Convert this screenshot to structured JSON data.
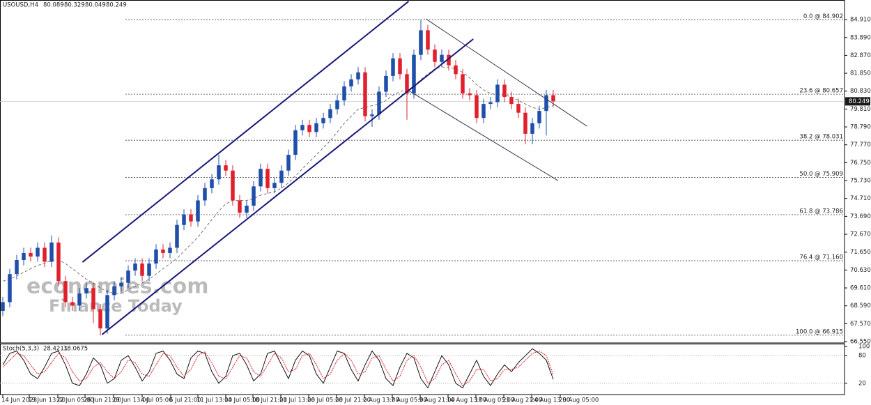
{
  "chart_data": [
    {
      "type": "candlestick",
      "title": "USOUSD,H4",
      "ohlc_header": [
        80.089,
        80.329,
        80.049,
        80.249
      ],
      "open": [
        68.3,
        68.8,
        70.4,
        71.2,
        71.6,
        71.4,
        71.9,
        71.1,
        72.2,
        70.0,
        68.8,
        68.6,
        69.3,
        69.6,
        68.4,
        67.3,
        69.2,
        69.7,
        69.9,
        70.6,
        71.0,
        70.3,
        71.0,
        71.8,
        71.6,
        71.9,
        73.2,
        73.8,
        73.4,
        74.6,
        75.3,
        75.8,
        76.6,
        76.3,
        74.6,
        73.9,
        74.3,
        75.4,
        76.4,
        75.3,
        75.6,
        76.3,
        77.2,
        78.6,
        78.9,
        78.5,
        79.0,
        79.3,
        79.8,
        80.3,
        81.1,
        81.5,
        81.9,
        79.4,
        79.5,
        80.8,
        81.7,
        82.7,
        81.8,
        80.7,
        82.9,
        84.3,
        83.2,
        82.5,
        82.9,
        82.3,
        81.8,
        80.7,
        80.6,
        79.3,
        80.1,
        80.2,
        81.2,
        80.5,
        80.1,
        79.6,
        78.4,
        79.0,
        79.7,
        80.6
      ],
      "high": [
        69.1,
        70.7,
        71.5,
        71.9,
        71.9,
        72.2,
        72.2,
        72.6,
        72.5,
        70.3,
        69.1,
        69.6,
        69.9,
        69.9,
        68.7,
        69.5,
        70.0,
        70.2,
        70.9,
        71.3,
        71.3,
        71.3,
        72.1,
        72.1,
        72.2,
        73.5,
        74.1,
        74.1,
        74.9,
        75.6,
        76.1,
        77.2,
        76.9,
        76.6,
        74.9,
        74.6,
        75.7,
        76.7,
        76.7,
        75.9,
        76.6,
        77.5,
        78.9,
        79.2,
        79.2,
        79.3,
        79.6,
        80.1,
        80.6,
        81.4,
        81.8,
        82.2,
        82.2,
        79.8,
        81.1,
        82.0,
        83.0,
        83.0,
        82.1,
        83.2,
        84.9,
        84.6,
        83.5,
        83.2,
        83.2,
        82.6,
        82.1,
        81.0,
        80.9,
        80.4,
        80.5,
        81.5,
        81.5,
        80.8,
        80.4,
        79.9,
        79.3,
        80.0,
        80.9,
        80.9
      ],
      "low": [
        68.0,
        68.5,
        70.1,
        70.9,
        71.1,
        71.1,
        70.8,
        70.8,
        69.7,
        68.5,
        68.3,
        68.3,
        69.0,
        67.6,
        66.9,
        67.0,
        68.9,
        69.4,
        69.6,
        70.3,
        70.0,
        70.0,
        70.7,
        71.3,
        71.3,
        71.6,
        72.9,
        73.1,
        73.1,
        74.3,
        75.0,
        75.5,
        76.0,
        74.3,
        73.6,
        73.6,
        74.0,
        75.1,
        75.0,
        75.0,
        75.3,
        76.0,
        76.9,
        78.3,
        78.2,
        78.2,
        78.7,
        79.0,
        79.5,
        80.0,
        80.8,
        81.2,
        79.1,
        78.8,
        79.2,
        80.5,
        81.4,
        81.5,
        79.2,
        80.4,
        82.6,
        82.9,
        82.2,
        82.2,
        82.0,
        81.5,
        80.4,
        80.3,
        79.0,
        79.0,
        79.8,
        79.9,
        80.2,
        79.8,
        79.3,
        77.8,
        77.8,
        78.7,
        78.3,
        79.95
      ],
      "close": [
        68.8,
        70.4,
        71.2,
        71.6,
        71.4,
        71.9,
        71.1,
        72.2,
        70.0,
        68.8,
        68.6,
        69.3,
        69.6,
        68.4,
        67.3,
        69.2,
        69.7,
        69.9,
        70.6,
        71.0,
        70.3,
        71.0,
        71.8,
        71.6,
        71.9,
        73.2,
        73.8,
        73.4,
        74.6,
        75.3,
        75.8,
        76.6,
        76.3,
        74.6,
        73.9,
        74.3,
        75.4,
        76.4,
        75.3,
        75.6,
        76.3,
        77.2,
        78.6,
        78.9,
        78.5,
        79.0,
        79.3,
        79.8,
        80.3,
        81.1,
        81.5,
        81.9,
        79.4,
        79.5,
        80.8,
        81.7,
        82.7,
        81.8,
        80.7,
        82.9,
        84.3,
        83.2,
        82.5,
        82.9,
        82.3,
        81.8,
        80.7,
        80.6,
        79.3,
        80.1,
        80.2,
        81.2,
        80.5,
        80.1,
        79.6,
        78.4,
        79.0,
        79.7,
        80.6,
        80.25
      ],
      "up_color": "#1f4fa8",
      "down_color": "#e0202c",
      "ma": {
        "color": "#555555",
        "values": [
          70.0,
          70.1,
          70.3,
          70.5,
          70.7,
          70.9,
          71.0,
          71.2,
          71.2,
          71.0,
          70.7,
          70.4,
          70.1,
          69.9,
          69.6,
          69.4,
          69.3,
          69.3,
          69.5,
          69.7,
          69.9,
          70.1,
          70.4,
          70.7,
          71.0,
          71.3,
          71.7,
          72.1,
          72.5,
          73.0,
          73.5,
          74.0,
          74.4,
          74.6,
          74.6,
          74.6,
          74.7,
          74.9,
          75.0,
          75.1,
          75.3,
          75.6,
          76.0,
          76.4,
          76.8,
          77.2,
          77.6,
          78.0,
          78.5,
          79.0,
          79.4,
          79.8,
          79.9,
          80.0,
          80.1,
          80.3,
          80.6,
          80.8,
          80.9,
          81.1,
          81.5,
          81.8,
          82.1,
          82.2,
          82.2,
          82.1,
          81.9,
          81.6,
          81.2,
          80.9,
          80.7,
          80.6,
          80.6,
          80.5,
          80.3,
          80.1,
          79.9,
          79.8,
          79.9,
          80.0
        ]
      },
      "xlim": [
        -0.4,
        120.8
      ],
      "xticks": [
        {
          "value": 0,
          "label": "14 Jun 2023"
        },
        {
          "value": 3.8,
          "label": "19 Jun 13:00"
        },
        {
          "value": 7.9,
          "label": "22 Jun 05:00"
        },
        {
          "value": 11.8,
          "label": "26 Jun 21:00"
        },
        {
          "value": 15.9,
          "label": "29 Jun 13:00"
        },
        {
          "value": 20,
          "label": "4 Jul 05:00"
        },
        {
          "value": 24.1,
          "label": "6 Jul 21:00"
        },
        {
          "value": 28,
          "label": "11 Jul 13:00"
        },
        {
          "value": 32,
          "label": "14 Jul 05:00"
        },
        {
          "value": 35.9,
          "label": "18 Jul 21:00"
        },
        {
          "value": 39.9,
          "label": "21 Jul 13:00"
        },
        {
          "value": 43.9,
          "label": "26 Jul 05:00"
        },
        {
          "value": 47.9,
          "label": "28 Jul 21:00"
        },
        {
          "value": 51.9,
          "label": "2 Aug 13:00"
        },
        {
          "value": 55.9,
          "label": "7 Aug 05:00"
        },
        {
          "value": 59.9,
          "label": "9 Aug 21:00"
        },
        {
          "value": 63.9,
          "label": "14 Aug 13:00"
        },
        {
          "value": 67.9,
          "label": "17 Aug 05:00"
        },
        {
          "value": 71.9,
          "label": "21 Aug 21:00"
        },
        {
          "value": 75.9,
          "label": "24 Aug 13:00"
        },
        {
          "value": 80,
          "label": "29 Aug 05:00"
        }
      ],
      "ylim": [
        66.47,
        85.47
      ],
      "yticks": [
        {
          "value": 84.91,
          "label": "84.910"
        },
        {
          "value": 83.89,
          "label": "83.890"
        },
        {
          "value": 82.87,
          "label": "82.870"
        },
        {
          "value": 81.85,
          "label": "81.850"
        },
        {
          "value": 80.83,
          "label": "80.830"
        },
        {
          "value": 79.81,
          "label": "79.810"
        },
        {
          "value": 78.79,
          "label": "78.790"
        },
        {
          "value": 77.77,
          "label": "77.770"
        },
        {
          "value": 76.75,
          "label": "76.750"
        },
        {
          "value": 75.73,
          "label": "75.730"
        },
        {
          "value": 74.71,
          "label": "74.710"
        },
        {
          "value": 73.69,
          "label": "73.690"
        },
        {
          "value": 72.67,
          "label": "72.670"
        },
        {
          "value": 71.65,
          "label": "71.650"
        },
        {
          "value": 70.63,
          "label": "70.630"
        },
        {
          "value": 69.61,
          "label": "69.610"
        },
        {
          "value": 68.59,
          "label": "68.590"
        },
        {
          "value": 67.57,
          "label": "67.570"
        },
        {
          "value": 66.55,
          "label": "66.550"
        }
      ],
      "fibonacci": [
        {
          "value": 84.902,
          "label": "0.0 @ 84.902"
        },
        {
          "value": 80.657,
          "label": "23.6 @ 80.657"
        },
        {
          "value": 78.031,
          "label": "38.2 @ 78.031"
        },
        {
          "value": 75.909,
          "label": "50.0 @ 75.909"
        },
        {
          "value": 73.786,
          "label": "61.8 @ 73.786"
        },
        {
          "value": 71.16,
          "label": "76.4 @ 71.160"
        },
        {
          "value": 66.915,
          "label": "100.0 @ 66.915"
        }
      ],
      "trendlines": [
        {
          "color": "#17177a",
          "x": [
            11.44,
            58.24
          ],
          "y": [
            71.08,
            85.95
          ]
        },
        {
          "color": "#17177a",
          "x": [
            14.24,
            67.52
          ],
          "y": [
            66.95,
            83.8
          ]
        },
        {
          "color": "#333355",
          "x": [
            60.72,
            83.84
          ],
          "y": [
            84.95,
            78.83
          ]
        },
        {
          "color": "#333355",
          "x": [
            58.24,
            79.68
          ],
          "y": [
            80.86,
            75.73
          ]
        }
      ],
      "current": 80.249,
      "watermark": [
        "economies.com",
        "Finance Today"
      ]
    },
    {
      "type": "line",
      "title": "Stoch(5,3,3)",
      "series": [
        {
          "color": "#111111",
          "values": [
            60,
            85,
            90,
            70,
            40,
            30,
            55,
            85,
            90,
            60,
            20,
            15,
            40,
            75,
            60,
            20,
            30,
            70,
            80,
            55,
            25,
            45,
            85,
            90,
            70,
            40,
            30,
            75,
            90,
            85,
            45,
            20,
            35,
            80,
            85,
            60,
            25,
            40,
            85,
            90,
            60,
            30,
            70,
            90,
            80,
            40,
            20,
            55,
            90,
            85,
            50,
            25,
            60,
            90,
            70,
            30,
            15,
            55,
            85,
            75,
            30,
            10,
            45,
            80,
            60,
            20,
            10,
            40,
            70,
            35,
            15,
            40,
            60,
            45,
            65,
            80,
            95,
            85,
            70,
            28.4211
          ]
        },
        {
          "color": "#e0202c",
          "values": [
            55,
            70,
            85,
            80,
            60,
            40,
            45,
            65,
            85,
            75,
            45,
            25,
            30,
            55,
            65,
            45,
            30,
            45,
            70,
            65,
            40,
            35,
            60,
            85,
            80,
            55,
            35,
            50,
            80,
            88,
            65,
            35,
            30,
            55,
            80,
            75,
            45,
            35,
            60,
            85,
            75,
            45,
            50,
            80,
            85,
            60,
            30,
            40,
            70,
            85,
            70,
            40,
            45,
            75,
            80,
            50,
            25,
            35,
            70,
            80,
            55,
            20,
            30,
            60,
            70,
            40,
            15,
            25,
            50,
            50,
            25,
            30,
            50,
            50,
            55,
            70,
            85,
            90,
            80,
            38.0675
          ]
        }
      ],
      "ylim": [
        0,
        100
      ],
      "yticks": [
        100,
        80,
        20
      ],
      "levels": [
        80,
        20
      ]
    }
  ]
}
